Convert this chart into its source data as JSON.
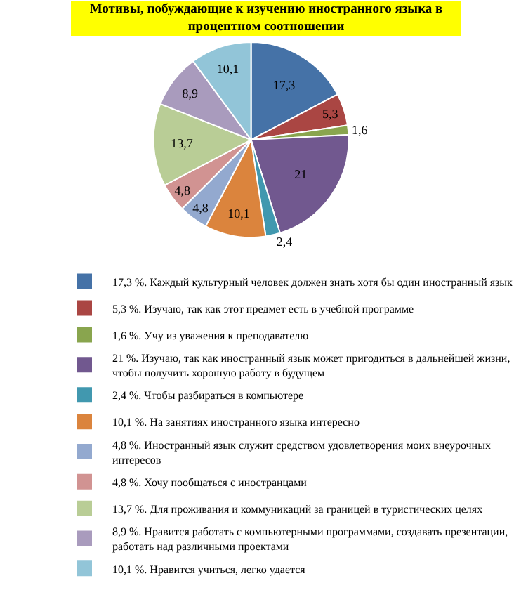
{
  "chart_data": {
    "type": "pie",
    "title": "Мотивы, побуждающие к изучению иностранного языка в процентном соотношении",
    "categories": [
      "17,3 %. Каждый культурный человек должен знать хотя бы один иностранный язык",
      "5,3 %. Изучаю, так как этот предмет есть в учебной программе",
      "1,6 %. Учу из уважения к преподавателю",
      "21 %. Изучаю, так как иностранный язык может пригодиться в дальнейшей жизни, чтобы получить хорошую работу в будущем",
      "2,4 %. Чтобы разбираться в компьютере",
      "10,1 %. На занятиях иностранного языка интересно",
      "4,8 %. Иностранный язык служит средством удовлетворения моих внеурочных интересов",
      "4,8 %. Хочу пообщаться с иностранцами",
      "13,7 %. Для проживания и коммуникаций за границей в туристических целях",
      "8,9 %. Нравится работать с компьютерными программами, создавать презентации, работать над различными проектами",
      "10,1 %. Нравится учиться, легко удается"
    ],
    "values": [
      17.3,
      5.3,
      1.6,
      21,
      2.4,
      10.1,
      4.8,
      4.8,
      13.7,
      8.9,
      10.1
    ],
    "value_labels": [
      "17,3",
      "5,3",
      "1,6",
      "21",
      "2,4",
      "10,1",
      "4,8",
      "4,8",
      "13,7",
      "8,9",
      "10,1"
    ],
    "colors": [
      "#4572a7",
      "#aa4643",
      "#89a54e",
      "#71588f",
      "#4198af",
      "#db843d",
      "#93a9cf",
      "#d19392",
      "#b9cd96",
      "#a99bbd",
      "#92c5d8"
    ],
    "legend": "bottom"
  }
}
